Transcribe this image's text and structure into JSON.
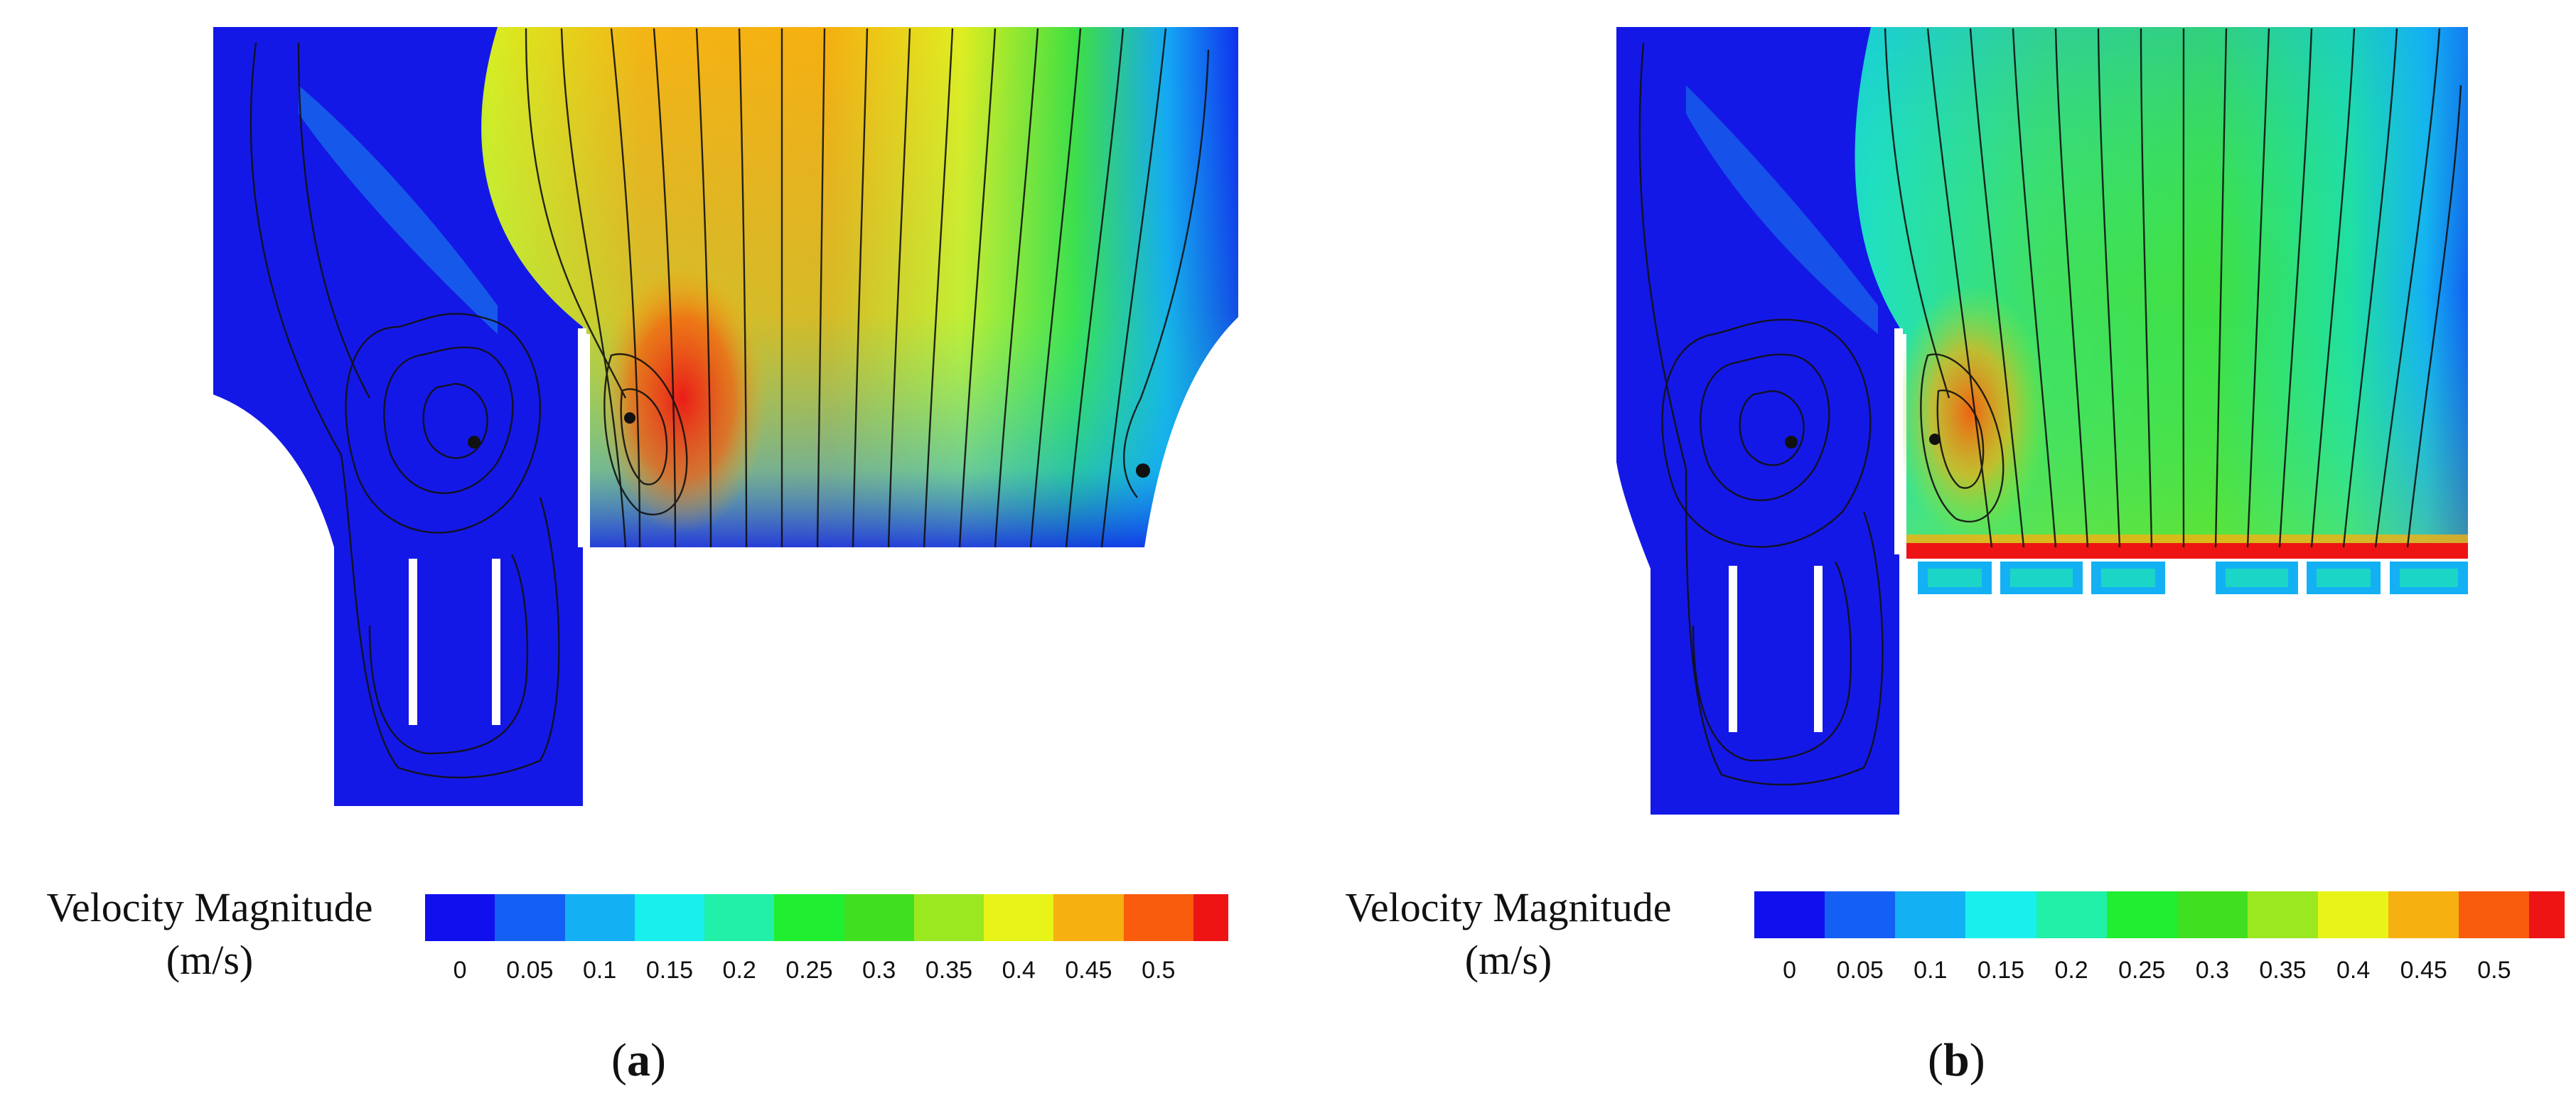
{
  "figure": {
    "panels": [
      {
        "id": "a",
        "caption_letter": "a",
        "colorbar": {
          "title_line1": "Velocity Magnitude",
          "title_line2": "(m/s)",
          "ticks": [
            "0",
            "0.05",
            "0.1",
            "0.15",
            "0.2",
            "0.25",
            "0.3",
            "0.35",
            "0.4",
            "0.45",
            "0.5"
          ]
        }
      },
      {
        "id": "b",
        "caption_letter": "b",
        "colorbar": {
          "title_line1": "Velocity Magnitude",
          "title_line2": "(m/s)",
          "ticks": [
            "0",
            "0.05",
            "0.1",
            "0.15",
            "0.2",
            "0.25",
            "0.3",
            "0.35",
            "0.4",
            "0.45",
            "0.5"
          ]
        }
      }
    ],
    "colormap": [
      "#1010ee",
      "#1460f4",
      "#14b0f4",
      "#18f0ee",
      "#20f0a8",
      "#20ee30",
      "#40e020",
      "#9ae820",
      "#e8f418",
      "#f6b010",
      "#f85c0c",
      "#ee1414"
    ]
  }
}
